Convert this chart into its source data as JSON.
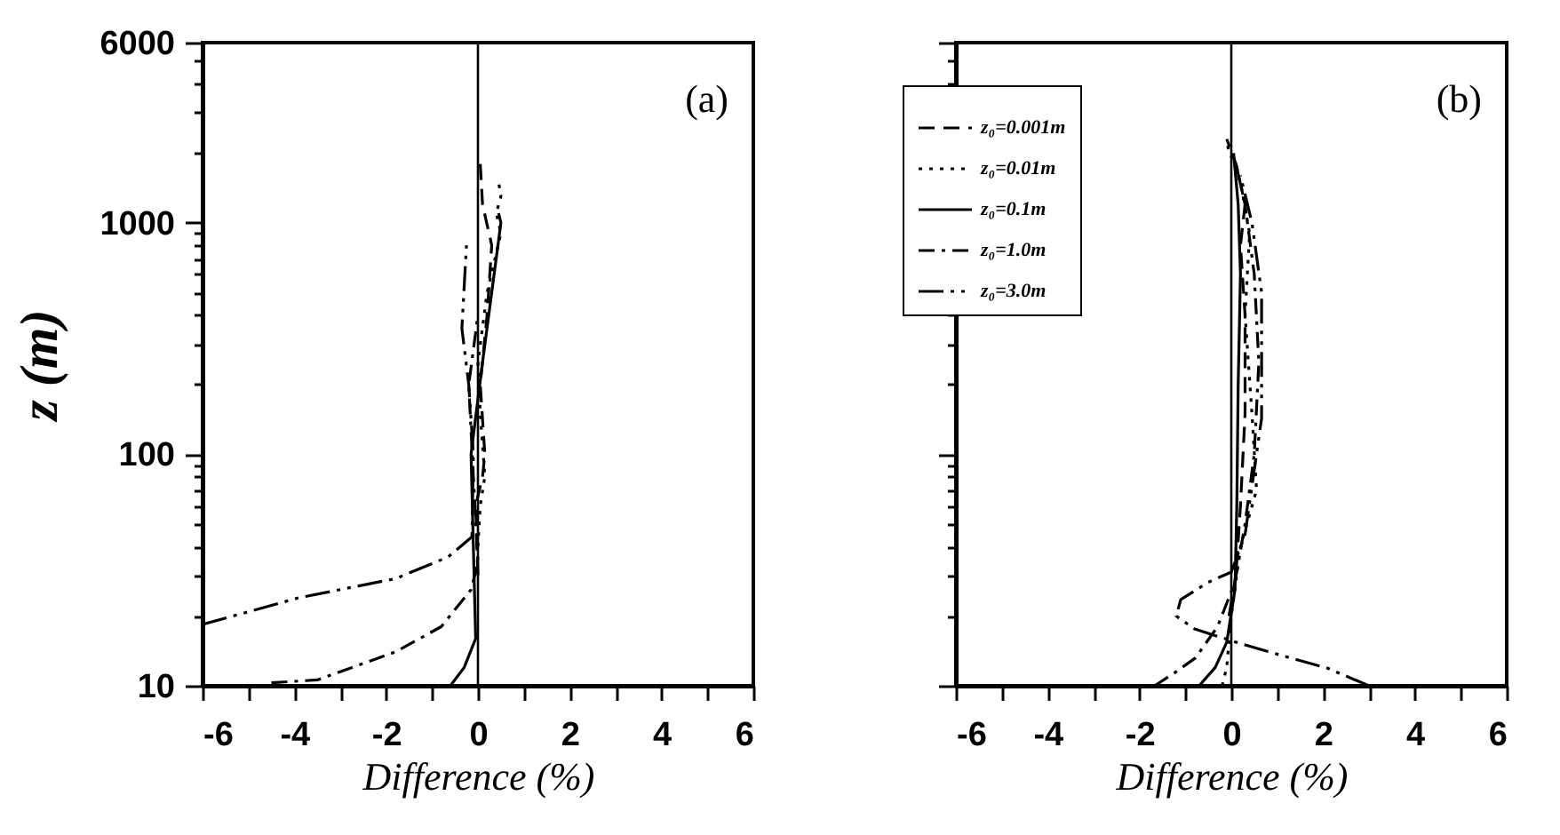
{
  "chart_data": [
    {
      "type": "line",
      "xlabel": "Difference (%)",
      "ylabel": "z (m)",
      "annotations": [
        "(a)"
      ],
      "log": "y",
      "xlim": [
        -6,
        6
      ],
      "ylim": [
        10,
        6000
      ],
      "xticks": [
        -6,
        {
          "value": -5,
          "label": null
        },
        -4,
        {
          "value": -3,
          "label": null
        },
        -2,
        {
          "value": -1,
          "label": null
        },
        0,
        {
          "value": 1,
          "label": null
        },
        2,
        {
          "value": 3,
          "label": null
        },
        4,
        {
          "value": 5,
          "label": null
        },
        6
      ],
      "yticks": [
        10,
        {
          "value": 20,
          "label": null
        },
        {
          "value": 30,
          "label": null
        },
        {
          "value": 40,
          "label": null
        },
        {
          "value": 50,
          "label": null
        },
        {
          "value": 60,
          "label": null
        },
        {
          "value": 70,
          "label": null
        },
        {
          "value": 80,
          "label": null
        },
        {
          "value": 90,
          "label": null
        },
        100,
        {
          "value": 200,
          "label": null
        },
        {
          "value": 300,
          "label": null
        },
        {
          "value": 400,
          "label": null
        },
        {
          "value": 500,
          "label": null
        },
        {
          "value": 600,
          "label": null
        },
        {
          "value": 700,
          "label": null
        },
        {
          "value": 800,
          "label": null
        },
        {
          "value": 900,
          "label": null
        },
        1000,
        {
          "value": 2000,
          "label": null
        },
        {
          "value": 3000,
          "label": null
        },
        {
          "value": 4000,
          "label": null
        },
        {
          "value": 5000,
          "label": null
        },
        6000
      ],
      "ref_lines": [
        {
          "axis": "x",
          "value": 0,
          "color": "#000000"
        }
      ],
      "series": [
        {
          "color": "#000000",
          "line_style": "dashed",
          "x": [
            0,
            -0.05,
            0.1,
            0.15,
            0.05,
            0.2,
            0.3,
            0.1,
            0.05
          ],
          "values": [
            30,
            60,
            80,
            100,
            200,
            400,
            800,
            1200,
            1800
          ]
        },
        {
          "color": "#000000",
          "line_style": "dotted",
          "x": [
            0,
            0.05,
            0.15,
            0.05,
            0,
            0.2,
            0.5,
            0.4,
            0.5,
            0.45
          ],
          "values": [
            40,
            60,
            80,
            150,
            250,
            500,
            900,
            1100,
            1300,
            1500
          ]
        },
        {
          "color": "#000000",
          "line_style": "solid",
          "x": [
            -0.6,
            -0.3,
            -0.05,
            -0.1,
            -0.15,
            0.1,
            0.3,
            0.5,
            0.45
          ],
          "values": [
            10,
            12,
            16,
            40,
            100,
            250,
            500,
            1000,
            1100
          ]
        },
        {
          "color": "#000000",
          "line_style": "dashdot",
          "x": [
            -4.5,
            -3.5,
            -1.8,
            -0.8,
            -0.15,
            0,
            -0.1,
            -0.2,
            0
          ],
          "values": [
            10.3,
            10.6,
            14,
            18,
            26,
            34,
            80,
            200,
            400
          ]
        },
        {
          "color": "#000000",
          "line_style": "dashdotdot",
          "x": [
            -6,
            -3.9,
            -1.8,
            -0.65,
            -0.13,
            -0.1,
            -0.2,
            -0.35,
            -0.25
          ],
          "values": [
            18.4,
            24,
            29,
            36,
            44,
            100,
            200,
            350,
            800
          ]
        }
      ]
    },
    {
      "type": "line",
      "xlabel": "Difference (%)",
      "annotations": [
        "(b)"
      ],
      "log": "y",
      "tick_labels": "x",
      "legend": "top left",
      "xlim": [
        -6,
        6
      ],
      "ylim": [
        10,
        6000
      ],
      "xticks": [
        -6,
        {
          "value": -5,
          "label": null
        },
        -4,
        {
          "value": -3,
          "label": null
        },
        -2,
        {
          "value": -1,
          "label": null
        },
        0,
        {
          "value": 1,
          "label": null
        },
        2,
        {
          "value": 3,
          "label": null
        },
        4,
        {
          "value": 5,
          "label": null
        },
        6
      ],
      "yticks": [
        10,
        {
          "value": 20,
          "label": null
        },
        {
          "value": 30,
          "label": null
        },
        {
          "value": 40,
          "label": null
        },
        {
          "value": 50,
          "label": null
        },
        {
          "value": 60,
          "label": null
        },
        {
          "value": 70,
          "label": null
        },
        {
          "value": 80,
          "label": null
        },
        {
          "value": 90,
          "label": null
        },
        100,
        {
          "value": 200,
          "label": null
        },
        {
          "value": 300,
          "label": null
        },
        {
          "value": 400,
          "label": null
        },
        {
          "value": 500,
          "label": null
        },
        {
          "value": 600,
          "label": null
        },
        {
          "value": 700,
          "label": null
        },
        {
          "value": 800,
          "label": null
        },
        {
          "value": 900,
          "label": null
        },
        1000,
        {
          "value": 2000,
          "label": null
        },
        {
          "value": 3000,
          "label": null
        },
        {
          "value": 4000,
          "label": null
        },
        {
          "value": 5000,
          "label": null
        },
        6000
      ],
      "ref_lines": [
        {
          "axis": "x",
          "value": 0,
          "color": "#000000"
        }
      ],
      "series": [
        {
          "name": "z₀=0.001m",
          "color": "#000000",
          "line_style": "dashed",
          "x": [
            -0.05,
            0.1,
            0.2,
            0.3,
            0.3,
            0.2,
            0.3,
            0.1,
            -0.1
          ],
          "values": [
            20,
            30,
            60,
            150,
            400,
            800,
            1200,
            1800,
            2300
          ]
        },
        {
          "name": "z₀=0.01m",
          "color": "#000000",
          "line_style": "dotted",
          "x": [
            -0.2,
            -0.1,
            0,
            0.2,
            0.55,
            0.45,
            0.3,
            0.4,
            0.2,
            -0.1
          ],
          "values": [
            10,
            12,
            20,
            40,
            70,
            150,
            400,
            900,
            1500,
            2200
          ]
        },
        {
          "name": "z₀=0.1m",
          "color": "#000000",
          "line_style": "solid",
          "x": [
            -0.7,
            -0.35,
            -0.1,
            0.08,
            0.12,
            0.15,
            0.2,
            0.15,
            0.05
          ],
          "values": [
            10,
            12,
            15.4,
            26,
            60,
            200,
            600,
            1200,
            2000
          ]
        },
        {
          "name": "z₀=1.0m",
          "color": "#000000",
          "line_style": "dashdot",
          "x": [
            -1.67,
            -1.2,
            -0.78,
            -0.3,
            0.08,
            0.3,
            0.5,
            0.6,
            0.5,
            0.3,
            0.1
          ],
          "values": [
            10,
            11.5,
            13.2,
            18,
            28,
            50,
            100,
            250,
            600,
            1200,
            1800
          ]
        },
        {
          "name": "z₀=3.0m",
          "color": "#000000",
          "line_style": "dashdotdot",
          "x": [
            3.0,
            2.1,
            1.05,
            0.16,
            -0.8,
            -1.2,
            -1.1,
            -0.5,
            0,
            0.3,
            0.66,
            0.66,
            0.45,
            0.2
          ],
          "values": [
            10,
            11.9,
            13.6,
            15.3,
            17.6,
            20,
            23.6,
            28,
            31,
            45,
            143,
            500,
            1000,
            1600
          ]
        }
      ]
    }
  ]
}
